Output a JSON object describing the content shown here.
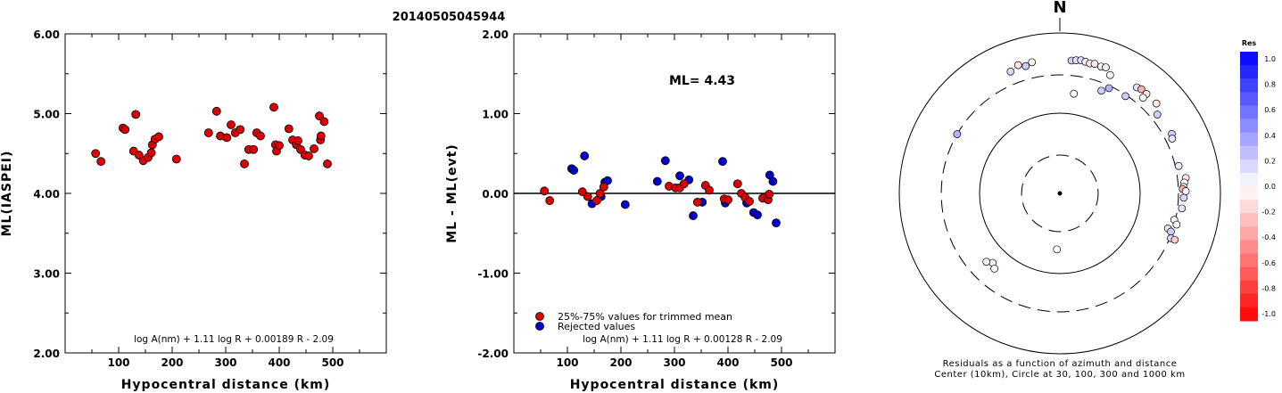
{
  "title": "20140505045944",
  "chart_data": [
    {
      "type": "scatter",
      "ylabel": "ML(IASPEI)",
      "xlabel": "Hypocentral distance (km)",
      "xlim": [
        0,
        600
      ],
      "ylim": [
        2.0,
        6.0
      ],
      "xticks": [
        "100",
        "200",
        "300",
        "400",
        "500"
      ],
      "yticks": [
        "2.00",
        "3.00",
        "4.00",
        "5.00",
        "6.00"
      ],
      "formula": "log A(nm) + 1.11 log R + 0.00189 R - 2.09",
      "marker_color": "#dd0000",
      "points": [
        [
          57,
          4.5
        ],
        [
          67,
          4.4
        ],
        [
          108,
          4.82
        ],
        [
          112,
          4.8
        ],
        [
          128,
          4.53
        ],
        [
          132,
          4.99
        ],
        [
          138,
          4.48
        ],
        [
          146,
          4.41
        ],
        [
          155,
          4.45
        ],
        [
          161,
          4.51
        ],
        [
          163,
          4.61
        ],
        [
          168,
          4.68
        ],
        [
          175,
          4.71
        ],
        [
          208,
          4.43
        ],
        [
          268,
          4.76
        ],
        [
          283,
          5.03
        ],
        [
          290,
          4.72
        ],
        [
          302,
          4.7
        ],
        [
          310,
          4.86
        ],
        [
          318,
          4.76
        ],
        [
          327,
          4.8
        ],
        [
          335,
          4.37
        ],
        [
          343,
          4.55
        ],
        [
          352,
          4.55
        ],
        [
          358,
          4.76
        ],
        [
          365,
          4.72
        ],
        [
          390,
          5.08
        ],
        [
          393,
          4.61
        ],
        [
          395,
          4.53
        ],
        [
          400,
          4.6
        ],
        [
          418,
          4.81
        ],
        [
          425,
          4.67
        ],
        [
          432,
          4.61
        ],
        [
          435,
          4.66
        ],
        [
          440,
          4.55
        ],
        [
          448,
          4.48
        ],
        [
          455,
          4.47
        ],
        [
          465,
          4.56
        ],
        [
          475,
          4.97
        ],
        [
          477,
          4.67
        ],
        [
          478,
          4.72
        ],
        [
          484,
          4.9
        ],
        [
          490,
          4.37
        ]
      ]
    },
    {
      "type": "scatter",
      "ylabel": "ML - ML(evt)",
      "xlabel": "Hypocentral distance (km)",
      "xlim": [
        0,
        600
      ],
      "ylim": [
        -2.0,
        2.0
      ],
      "xticks": [
        "100",
        "200",
        "300",
        "400",
        "500"
      ],
      "yticks": [
        "-2.00",
        "-1.00",
        "0.00",
        "1.00",
        "2.00"
      ],
      "ml_label": "ML=  4.43",
      "formula": "log A(nm) + 1.11 log R + 0.00128 R - 2.09",
      "legend": [
        {
          "label": "25%-75% values for trimmed mean",
          "color": "#dd0000"
        },
        {
          "label": "Rejected values",
          "color": "#0000cc"
        }
      ],
      "trimmed": [
        [
          57,
          0.03
        ],
        [
          67,
          -0.09
        ],
        [
          128,
          0.02
        ],
        [
          138,
          -0.04
        ],
        [
          155,
          -0.09
        ],
        [
          161,
          0.0
        ],
        [
          168,
          0.08
        ],
        [
          290,
          0.09
        ],
        [
          302,
          0.07
        ],
        [
          310,
          0.07
        ],
        [
          318,
          0.12
        ],
        [
          343,
          -0.11
        ],
        [
          358,
          0.1
        ],
        [
          365,
          0.04
        ],
        [
          393,
          -0.07
        ],
        [
          400,
          -0.08
        ],
        [
          418,
          0.12
        ],
        [
          425,
          0.0
        ],
        [
          432,
          -0.05
        ],
        [
          440,
          -0.1
        ],
        [
          465,
          -0.06
        ],
        [
          475,
          -0.08
        ],
        [
          477,
          -0.01
        ]
      ],
      "rejected": [
        [
          108,
          0.31
        ],
        [
          112,
          0.29
        ],
        [
          132,
          0.47
        ],
        [
          146,
          -0.13
        ],
        [
          163,
          -0.04
        ],
        [
          170,
          0.14
        ],
        [
          175,
          0.16
        ],
        [
          208,
          -0.14
        ],
        [
          268,
          0.15
        ],
        [
          283,
          0.41
        ],
        [
          310,
          0.22
        ],
        [
          327,
          0.17
        ],
        [
          335,
          -0.28
        ],
        [
          352,
          -0.11
        ],
        [
          390,
          0.4
        ],
        [
          395,
          -0.12
        ],
        [
          435,
          -0.12
        ],
        [
          448,
          -0.24
        ],
        [
          455,
          -0.27
        ],
        [
          478,
          0.23
        ],
        [
          484,
          0.15
        ],
        [
          490,
          -0.37
        ]
      ]
    },
    {
      "type": "polar-scatter",
      "north_label": "N",
      "caption_line1": "Residuals as a function of azimuth and distance",
      "caption_line2": "Center (10km), Circle at 30, 100, 300 and 1000 km",
      "rings_km": [
        30,
        100,
        300,
        1000
      ],
      "ring_styles": [
        "dashed",
        "solid",
        "dashed",
        "solid"
      ],
      "colorbar": {
        "title": "Res",
        "range": [
          -1.0,
          1.0
        ],
        "ticks": [
          "1.0",
          "0.8",
          "0.6",
          "0.4",
          "0.2",
          "0.0",
          "-0.2",
          "-0.4",
          "-0.6",
          "-0.8",
          "-1.0"
        ],
        "positive_color": "#0000ff",
        "negative_color": "#ff0000"
      },
      "stations": [
        {
          "az": 348,
          "dist": 470,
          "res": -0.05
        },
        {
          "az": 345,
          "dist": 440,
          "res": 0.2
        },
        {
          "az": 342,
          "dist": 480,
          "res": -0.1
        },
        {
          "az": 338,
          "dist": 435,
          "res": 0.15
        },
        {
          "az": 300,
          "dist": 300,
          "res": 0.3
        },
        {
          "az": 5,
          "dist": 460,
          "res": 0.2
        },
        {
          "az": 7,
          "dist": 470,
          "res": 0.1
        },
        {
          "az": 9,
          "dist": 480,
          "res": 0.15
        },
        {
          "az": 11,
          "dist": 470,
          "res": 0.05
        },
        {
          "az": 13,
          "dist": 460,
          "res": -0.1
        },
        {
          "az": 15,
          "dist": 470,
          "res": 0.05
        },
        {
          "az": 18,
          "dist": 460,
          "res": -0.05
        },
        {
          "az": 20,
          "dist": 470,
          "res": 0.05
        },
        {
          "az": 23,
          "dist": 400,
          "res": 0.0
        },
        {
          "az": 36,
          "dist": 430,
          "res": 0.1
        },
        {
          "az": 38,
          "dist": 445,
          "res": -0.3
        },
        {
          "az": 41,
          "dist": 440,
          "res": -0.1
        },
        {
          "az": 41,
          "dist": 380,
          "res": 0.0
        },
        {
          "az": 47,
          "dist": 440,
          "res": -0.1
        },
        {
          "az": 51,
          "dist": 365,
          "res": 0.2
        },
        {
          "az": 22,
          "dist": 240,
          "res": 0.2
        },
        {
          "az": 25,
          "dist": 280,
          "res": 0.3
        },
        {
          "az": 34,
          "dist": 290,
          "res": 0.2
        },
        {
          "az": 8,
          "dist": 180,
          "res": 0.0
        },
        {
          "az": 62,
          "dist": 380,
          "res": 0.2
        },
        {
          "az": 64,
          "dist": 360,
          "res": 0.1
        },
        {
          "az": 77,
          "dist": 330,
          "res": 0.1
        },
        {
          "az": 83,
          "dist": 380,
          "res": -0.1
        },
        {
          "az": 85,
          "dist": 360,
          "res": 0.0
        },
        {
          "az": 87,
          "dist": 350,
          "res": 0.05
        },
        {
          "az": 88,
          "dist": 340,
          "res": -0.3
        },
        {
          "az": 89,
          "dist": 370,
          "res": -0.05
        },
        {
          "az": 92,
          "dist": 350,
          "res": 0.15
        },
        {
          "az": 97,
          "dist": 340,
          "res": 0.1
        },
        {
          "az": 103,
          "dist": 290,
          "res": 0.05
        },
        {
          "az": 105,
          "dist": 320,
          "res": -0.05
        },
        {
          "az": 108,
          "dist": 260,
          "res": -0.1
        },
        {
          "az": 109,
          "dist": 290,
          "res": 0.2
        },
        {
          "az": 112,
          "dist": 310,
          "res": 0.15
        },
        {
          "az": 112,
          "dist": 350,
          "res": -0.2
        },
        {
          "az": 183,
          "dist": 50,
          "res": 0.0
        },
        {
          "az": 224,
          "dist": 160,
          "res": -0.05
        },
        {
          "az": 221,
          "dist": 175,
          "res": 0.0
        },
        {
          "az": 227,
          "dist": 178,
          "res": -0.05
        }
      ]
    }
  ]
}
